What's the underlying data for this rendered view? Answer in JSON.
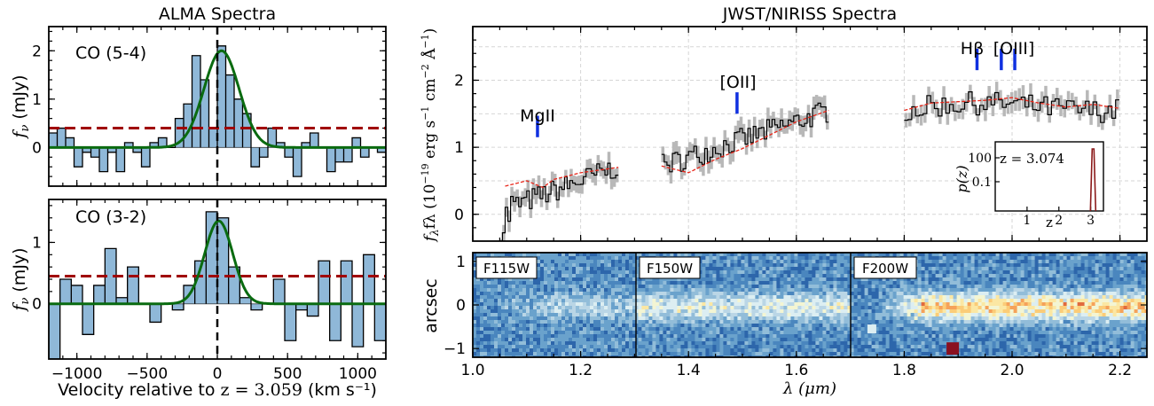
{
  "chart_data": [
    {
      "type": "bar",
      "panel": "alma-co54",
      "title": "ALMA Spectra",
      "label": "CO (5-4)",
      "ylabel": "fν (mJy)",
      "xlim": [
        -1200,
        1200
      ],
      "ylim": [
        -0.8,
        2.5
      ],
      "xticks": [
        -1000,
        -500,
        0,
        500,
        1000
      ],
      "yticks": [
        0,
        1,
        2
      ],
      "channel_width_kmps": 60,
      "channel_centers": [
        -1170,
        -1110,
        -1050,
        -990,
        -930,
        -870,
        -810,
        -750,
        -690,
        -630,
        -570,
        -510,
        -450,
        -390,
        -330,
        -270,
        -210,
        -150,
        -90,
        -30,
        30,
        90,
        150,
        210,
        270,
        330,
        390,
        450,
        510,
        570,
        630,
        690,
        750,
        810,
        870,
        930,
        990,
        1050,
        1110,
        1170
      ],
      "flux": [
        0.3,
        0.4,
        0.2,
        -0.4,
        -0.1,
        -0.2,
        -0.5,
        -0.1,
        -0.5,
        0.1,
        -0.1,
        -0.4,
        0.1,
        0.2,
        0.0,
        0.6,
        0.9,
        1.9,
        1.4,
        0.4,
        2.1,
        1.5,
        1.0,
        0.7,
        -0.4,
        -0.2,
        0.4,
        0.1,
        -0.2,
        -0.6,
        0.1,
        0.3,
        0.0,
        -0.5,
        -0.3,
        -0.3,
        0.2,
        -0.2,
        0.0,
        -0.1
      ],
      "gaussian_fit": {
        "amplitude": 2.0,
        "center": 30,
        "sigma": 125
      },
      "noise_level": 0.4
    },
    {
      "type": "bar",
      "panel": "alma-co32",
      "label": "CO (3-2)",
      "ylabel": "fν (mJy)",
      "xlabel_prefix": "Velocity relative to ",
      "xlabel_redshift": "z = 3.059",
      "xlabel_suffix": " (km s⁻¹)",
      "xlim": [
        -1200,
        1200
      ],
      "ylim": [
        -0.9,
        1.7
      ],
      "xticks": [
        -1000,
        -500,
        0,
        500,
        1000
      ],
      "yticks": [
        0,
        1
      ],
      "channel_width_kmps": 80,
      "channel_centers": [
        -1160,
        -1080,
        -1000,
        -920,
        -840,
        -760,
        -680,
        -600,
        -520,
        -440,
        -360,
        -280,
        -200,
        -120,
        -40,
        40,
        120,
        200,
        280,
        360,
        440,
        520,
        600,
        680,
        760,
        840,
        920,
        1000,
        1080,
        1160
      ],
      "flux": [
        -0.9,
        0.4,
        0.3,
        -0.5,
        0.3,
        0.9,
        0.1,
        0.6,
        0.0,
        -0.3,
        0.0,
        -0.1,
        0.3,
        0.7,
        1.5,
        1.4,
        0.6,
        0.1,
        -0.1,
        0.0,
        0.4,
        -0.6,
        -0.1,
        -0.2,
        0.7,
        -0.6,
        0.7,
        -0.7,
        0.8,
        -0.6
      ],
      "gaussian_fit": {
        "amplitude": 1.35,
        "center": 10,
        "sigma": 100
      },
      "noise_level": 0.45
    },
    {
      "type": "line",
      "panel": "niriss-spectrum",
      "title": "JWST/NIRISS Spectra",
      "ylabel_prefix": "fλ (10",
      "ylabel_exp1": "−19",
      "ylabel_mid": " erg s",
      "ylabel_exp2": "−1",
      "ylabel_cm": " cm",
      "ylabel_exp3": "−2",
      "ylabel_ang": " Å",
      "ylabel_exp4": "−1",
      "ylabel_end": ")",
      "xlabel": "λ (μm)",
      "xlim": [
        1.0,
        2.25
      ],
      "ylim": [
        -0.4,
        2.8
      ],
      "xticks": [
        1.0,
        1.2,
        1.4,
        1.6,
        1.8,
        2.0,
        2.2
      ],
      "yticks": [
        0,
        1,
        2
      ],
      "segments": [
        {
          "filter": "F115W",
          "x_start": 1.05,
          "x_end": 1.27,
          "dx": 0.005,
          "y_start": 0.05,
          "y_end": 0.72
        },
        {
          "filter": "F150W",
          "x_start": 1.35,
          "x_end": 1.66,
          "dx": 0.005,
          "y_start": 0.72,
          "y_end": 1.55
        },
        {
          "filter": "F200W",
          "x_start": 1.8,
          "x_end": 2.2,
          "dx": 0.007,
          "y_start": 1.55,
          "y_end": 1.63
        }
      ],
      "model": [
        {
          "x": [
            1.06,
            1.1,
            1.13,
            1.15,
            1.2,
            1.27
          ],
          "y": [
            0.42,
            0.5,
            0.4,
            0.52,
            0.62,
            0.7
          ]
        },
        {
          "x": [
            1.35,
            1.4,
            1.45,
            1.5,
            1.55,
            1.6,
            1.66
          ],
          "y": [
            0.72,
            0.62,
            0.82,
            0.98,
            1.18,
            1.38,
            1.55
          ]
        },
        {
          "x": [
            1.8,
            1.85,
            1.9,
            1.95,
            2.0,
            2.05,
            2.1,
            2.15,
            2.2
          ],
          "y": [
            1.55,
            1.66,
            1.68,
            1.7,
            1.74,
            1.66,
            1.6,
            1.64,
            1.58
          ]
        }
      ],
      "line_markers": [
        {
          "label": "MgII",
          "lines_um": [
            1.12
          ],
          "marker_y": 1.15
        },
        {
          "label": "[OII]",
          "lines_um": [
            1.49
          ],
          "marker_y": 1.5
        },
        {
          "label": "Hβ",
          "lines_um": [
            1.935
          ],
          "marker_y": 2.15
        },
        {
          "label": "[OIII]",
          "lines_um": [
            1.98,
            2.005
          ],
          "marker_y": 2.15
        }
      ]
    },
    {
      "type": "line",
      "panel": "pz-inset",
      "label_prefix": "z = ",
      "label_value": "3.074",
      "ylabel": "p(z)",
      "xlabel": "z",
      "xlim": [
        0,
        3.4
      ],
      "yscale": "log",
      "yticks_labels": [
        "100",
        "0.1"
      ],
      "xticks": [
        1,
        2,
        3
      ],
      "peak_z": 3.074
    },
    {
      "type": "heatmap",
      "panel": "niriss-2d",
      "ylabel": "arcsec",
      "ylim": [
        -1.2,
        1.2
      ],
      "yticks": [
        -1,
        0,
        1
      ],
      "filters": [
        "F115W",
        "F150W",
        "F200W"
      ],
      "filter_ranges_um": [
        [
          1.0,
          1.3
        ],
        [
          1.3,
          1.7
        ],
        [
          1.7,
          2.25
        ]
      ],
      "trace_center_arcsec": 0.0
    }
  ]
}
